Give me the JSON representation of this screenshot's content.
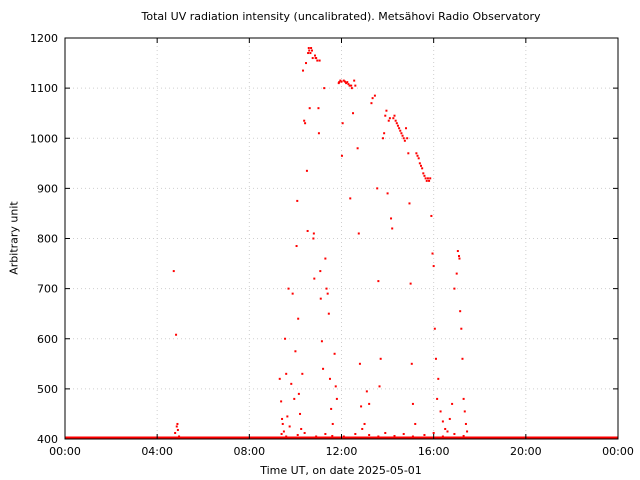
{
  "chart_data": {
    "type": "scatter",
    "title": "Total UV radiation intensity (uncalibrated). Metsähovi Radio Observatory",
    "xlabel": "Time UT, on date 2025-05-01",
    "ylabel": "Arbitrary unit",
    "xlim": [
      0,
      24
    ],
    "ylim": [
      400,
      1200
    ],
    "x_ticks": [
      "00:00",
      "04:00",
      "08:00",
      "12:00",
      "16:00",
      "20:00",
      "00:00"
    ],
    "y_ticks": [
      "400",
      "500",
      "600",
      "700",
      "800",
      "900",
      "1000",
      "1100",
      "1200"
    ],
    "grid": true,
    "point_color": "#ff0000",
    "baseline": {
      "x_start": 0,
      "x_end": 24,
      "y": 400
    },
    "points": [
      [
        4.72,
        735
      ],
      [
        4.82,
        608
      ],
      [
        4.78,
        412
      ],
      [
        4.85,
        425
      ],
      [
        4.9,
        418
      ],
      [
        4.95,
        405
      ],
      [
        4.88,
        430
      ],
      [
        9.32,
        520
      ],
      [
        9.38,
        475
      ],
      [
        9.42,
        440
      ],
      [
        9.45,
        430
      ],
      [
        9.5,
        415
      ],
      [
        9.55,
        600
      ],
      [
        9.6,
        530
      ],
      [
        9.65,
        445
      ],
      [
        9.7,
        700
      ],
      [
        9.75,
        425
      ],
      [
        9.82,
        510
      ],
      [
        9.88,
        690
      ],
      [
        9.95,
        480
      ],
      [
        10.0,
        575
      ],
      [
        10.05,
        785
      ],
      [
        10.08,
        875
      ],
      [
        10.12,
        640
      ],
      [
        10.15,
        490
      ],
      [
        10.2,
        450
      ],
      [
        10.25,
        420
      ],
      [
        10.3,
        530
      ],
      [
        10.33,
        1135
      ],
      [
        10.38,
        1035
      ],
      [
        10.42,
        1030
      ],
      [
        10.46,
        1150
      ],
      [
        10.5,
        935
      ],
      [
        10.53,
        815
      ],
      [
        10.55,
        1170
      ],
      [
        10.58,
        1180
      ],
      [
        10.6,
        1175
      ],
      [
        10.62,
        1060
      ],
      [
        10.65,
        1170
      ],
      [
        10.68,
        1180
      ],
      [
        10.72,
        1175
      ],
      [
        10.75,
        1160
      ],
      [
        10.78,
        800
      ],
      [
        10.8,
        810
      ],
      [
        10.82,
        720
      ],
      [
        10.85,
        1165
      ],
      [
        10.88,
        1160
      ],
      [
        10.9,
        1160
      ],
      [
        10.95,
        1155
      ],
      [
        11.0,
        1060
      ],
      [
        11.02,
        1010
      ],
      [
        11.05,
        1155
      ],
      [
        11.08,
        735
      ],
      [
        11.1,
        680
      ],
      [
        11.15,
        595
      ],
      [
        11.2,
        540
      ],
      [
        11.25,
        1100
      ],
      [
        11.3,
        760
      ],
      [
        11.35,
        700
      ],
      [
        11.4,
        690
      ],
      [
        11.45,
        650
      ],
      [
        11.5,
        520
      ],
      [
        11.55,
        460
      ],
      [
        11.62,
        430
      ],
      [
        11.7,
        570
      ],
      [
        11.75,
        505
      ],
      [
        11.8,
        480
      ],
      [
        11.88,
        1110
      ],
      [
        11.9,
        1112
      ],
      [
        11.95,
        1115
      ],
      [
        12.0,
        1113
      ],
      [
        12.02,
        965
      ],
      [
        12.05,
        1030
      ],
      [
        12.1,
        1115
      ],
      [
        12.15,
        1113
      ],
      [
        12.2,
        1110
      ],
      [
        12.25,
        1112
      ],
      [
        12.3,
        1108
      ],
      [
        12.35,
        1105
      ],
      [
        12.38,
        880
      ],
      [
        12.42,
        1105
      ],
      [
        12.45,
        1100
      ],
      [
        12.5,
        1050
      ],
      [
        12.55,
        1115
      ],
      [
        12.6,
        1105
      ],
      [
        12.7,
        980
      ],
      [
        12.75,
        810
      ],
      [
        12.8,
        550
      ],
      [
        12.85,
        465
      ],
      [
        12.9,
        420
      ],
      [
        13.0,
        430
      ],
      [
        13.1,
        495
      ],
      [
        13.2,
        470
      ],
      [
        13.3,
        1070
      ],
      [
        13.35,
        1080
      ],
      [
        13.45,
        1085
      ],
      [
        13.55,
        900
      ],
      [
        13.6,
        715
      ],
      [
        13.65,
        505
      ],
      [
        13.7,
        560
      ],
      [
        13.8,
        1000
      ],
      [
        13.85,
        1010
      ],
      [
        13.9,
        1045
      ],
      [
        13.95,
        1055
      ],
      [
        14.0,
        890
      ],
      [
        14.05,
        1035
      ],
      [
        14.1,
        1040
      ],
      [
        14.15,
        840
      ],
      [
        14.2,
        820
      ],
      [
        14.25,
        1040
      ],
      [
        14.3,
        1045
      ],
      [
        14.35,
        1035
      ],
      [
        14.4,
        1030
      ],
      [
        14.45,
        1025
      ],
      [
        14.5,
        1020
      ],
      [
        14.55,
        1015
      ],
      [
        14.6,
        1010
      ],
      [
        14.65,
        1005
      ],
      [
        14.7,
        1000
      ],
      [
        14.75,
        995
      ],
      [
        14.8,
        1020
      ],
      [
        14.85,
        1000
      ],
      [
        14.9,
        970
      ],
      [
        14.95,
        870
      ],
      [
        15.0,
        710
      ],
      [
        15.05,
        550
      ],
      [
        15.1,
        470
      ],
      [
        15.2,
        430
      ],
      [
        15.25,
        970
      ],
      [
        15.3,
        965
      ],
      [
        15.35,
        960
      ],
      [
        15.4,
        950
      ],
      [
        15.45,
        945
      ],
      [
        15.5,
        940
      ],
      [
        15.55,
        930
      ],
      [
        15.6,
        925
      ],
      [
        15.65,
        920
      ],
      [
        15.7,
        915
      ],
      [
        15.75,
        920
      ],
      [
        15.8,
        915
      ],
      [
        15.85,
        920
      ],
      [
        15.9,
        845
      ],
      [
        15.95,
        770
      ],
      [
        16.0,
        745
      ],
      [
        16.05,
        620
      ],
      [
        16.1,
        560
      ],
      [
        16.15,
        480
      ],
      [
        16.2,
        520
      ],
      [
        16.3,
        455
      ],
      [
        16.4,
        435
      ],
      [
        16.5,
        420
      ],
      [
        16.6,
        415
      ],
      [
        16.7,
        440
      ],
      [
        16.8,
        470
      ],
      [
        16.9,
        700
      ],
      [
        17.0,
        730
      ],
      [
        17.05,
        775
      ],
      [
        17.1,
        765
      ],
      [
        17.12,
        760
      ],
      [
        17.15,
        655
      ],
      [
        17.2,
        620
      ],
      [
        17.25,
        560
      ],
      [
        17.3,
        480
      ],
      [
        17.35,
        455
      ],
      [
        17.4,
        430
      ],
      [
        17.45,
        415
      ],
      [
        9.4,
        410
      ],
      [
        9.6,
        405
      ],
      [
        10.1,
        408
      ],
      [
        10.4,
        412
      ],
      [
        10.9,
        405
      ],
      [
        11.3,
        410
      ],
      [
        11.6,
        406
      ],
      [
        12.1,
        405
      ],
      [
        12.6,
        410
      ],
      [
        13.2,
        408
      ],
      [
        13.6,
        405
      ],
      [
        13.9,
        412
      ],
      [
        14.3,
        406
      ],
      [
        14.7,
        410
      ],
      [
        15.1,
        405
      ],
      [
        15.6,
        408
      ],
      [
        16.0,
        412
      ],
      [
        16.4,
        405
      ],
      [
        16.9,
        410
      ],
      [
        17.3,
        406
      ]
    ]
  }
}
